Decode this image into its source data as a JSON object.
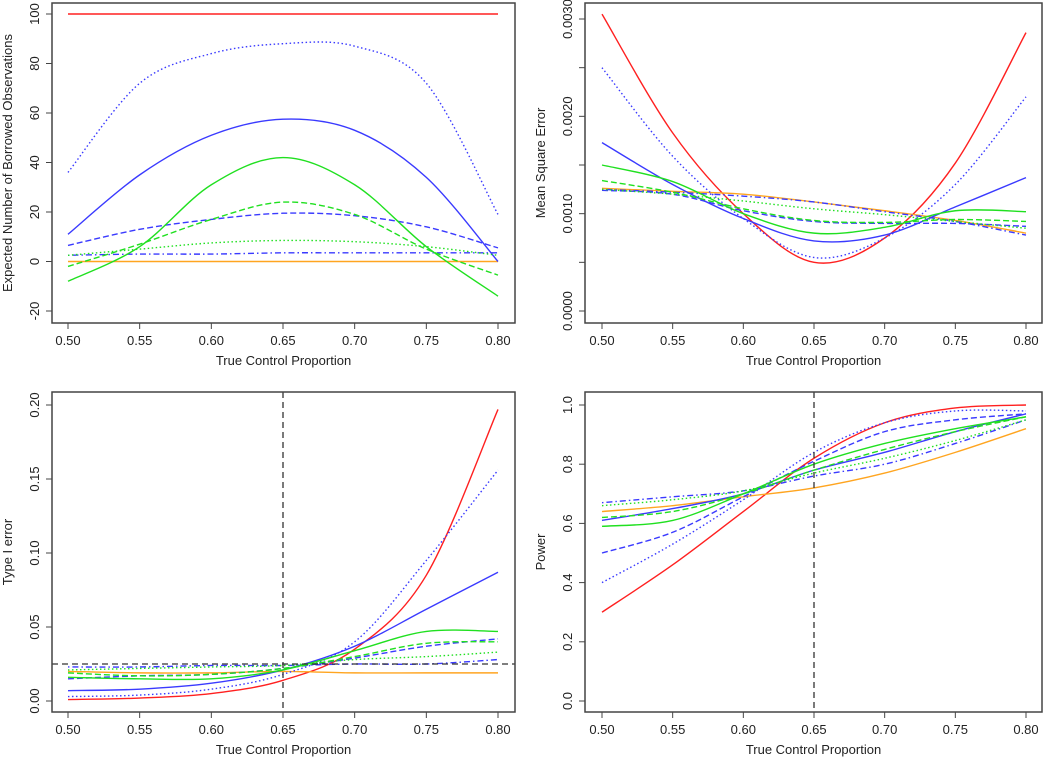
{
  "series_styles": [
    {
      "name": "red-solid",
      "color": "#ff2020",
      "style": "solid"
    },
    {
      "name": "orange-solid",
      "color": "#ffa520",
      "style": "solid"
    },
    {
      "name": "blue-solid",
      "color": "#3a3aff",
      "style": "solid"
    },
    {
      "name": "blue-dotted",
      "color": "#3a3aff",
      "style": "dotted"
    },
    {
      "name": "blue-dashed",
      "color": "#3a3aff",
      "style": "dashed"
    },
    {
      "name": "blue-dotdash",
      "color": "#3a3aff",
      "style": "dotdash"
    },
    {
      "name": "green-solid",
      "color": "#20e020",
      "style": "solid"
    },
    {
      "name": "green-dashed",
      "color": "#20e020",
      "style": "dashed"
    },
    {
      "name": "green-dotted",
      "color": "#20e020",
      "style": "dotted"
    }
  ],
  "chart_data": [
    {
      "type": "line",
      "title": "",
      "xlabel": "True Control Proportion",
      "ylabel": "Expected Number of Borrowed Observations",
      "x": [
        0.5,
        0.55,
        0.6,
        0.65,
        0.7,
        0.75,
        0.8
      ],
      "xlim": [
        0.5,
        0.8
      ],
      "xticks": [
        "0.50",
        "0.55",
        "0.60",
        "0.65",
        "0.70",
        "0.75",
        "0.80"
      ],
      "ylim": [
        -20,
        100
      ],
      "yticks": [
        -20,
        0,
        20,
        40,
        60,
        80,
        100
      ],
      "ytick_labels": [
        "-20",
        "0",
        "20",
        "40",
        "60",
        "80",
        "100"
      ],
      "reference_lines": [],
      "series": [
        {
          "name": "red-solid",
          "values": [
            100,
            100,
            100,
            100,
            100,
            100,
            100
          ]
        },
        {
          "name": "orange-solid",
          "values": [
            0,
            0,
            0,
            0,
            0,
            0,
            0
          ]
        },
        {
          "name": "blue-solid",
          "values": [
            11,
            35,
            51,
            57.5,
            53,
            34,
            0
          ]
        },
        {
          "name": "blue-dotted",
          "values": [
            36,
            72,
            84,
            88,
            87,
            72,
            19
          ]
        },
        {
          "name": "blue-dashed",
          "values": [
            6.5,
            13,
            17,
            19.5,
            18.5,
            14,
            5.5
          ]
        },
        {
          "name": "blue-dotdash",
          "values": [
            2.5,
            3,
            3,
            3.5,
            3.5,
            3.5,
            3.5
          ]
        },
        {
          "name": "green-solid",
          "values": [
            -8,
            6,
            31,
            42,
            31,
            6,
            -14
          ]
        },
        {
          "name": "green-dashed",
          "values": [
            -2,
            7,
            17,
            24,
            19,
            5,
            -5.5
          ]
        },
        {
          "name": "green-dotted",
          "values": [
            2.5,
            5,
            7.5,
            8.5,
            8,
            6,
            2.5
          ]
        }
      ]
    },
    {
      "type": "line",
      "title": "",
      "xlabel": "True Control Proportion",
      "ylabel": "Mean Square Error",
      "x": [
        0.5,
        0.55,
        0.6,
        0.65,
        0.7,
        0.75,
        0.8
      ],
      "xlim": [
        0.5,
        0.8
      ],
      "xticks": [
        "0.50",
        "0.55",
        "0.60",
        "0.65",
        "0.70",
        "0.75",
        "0.80"
      ],
      "ylim": [
        0,
        0.003
      ],
      "yticks": [
        0,
        0.0005,
        0.001,
        0.0015,
        0.002,
        0.0025,
        0.003
      ],
      "ytick_labels": [
        "0.0000",
        "",
        "0.0010",
        "",
        "0.0020",
        "",
        "0.0030"
      ],
      "reference_lines": [],
      "series": [
        {
          "name": "red-solid",
          "values": [
            0.00305,
            0.00183,
            0.001,
            0.0005,
            0.00075,
            0.00152,
            0.00286
          ]
        },
        {
          "name": "orange-solid",
          "values": [
            0.00126,
            0.00123,
            0.0012,
            0.00112,
            0.00103,
            0.00093,
            0.0008
          ]
        },
        {
          "name": "blue-solid",
          "values": [
            0.00173,
            0.0013,
            0.00095,
            0.00072,
            0.00078,
            0.00107,
            0.00137
          ]
        },
        {
          "name": "blue-dotted",
          "values": [
            0.0025,
            0.00159,
            0.00095,
            0.00055,
            0.00075,
            0.0013,
            0.0022
          ]
        },
        {
          "name": "blue-dashed",
          "values": [
            0.00124,
            0.0012,
            0.00103,
            0.00092,
            0.0009,
            0.0009,
            0.00087
          ]
        },
        {
          "name": "blue-dotdash",
          "values": [
            0.00125,
            0.00122,
            0.00118,
            0.00112,
            0.00102,
            0.00092,
            0.00078
          ]
        },
        {
          "name": "green-solid",
          "values": [
            0.0015,
            0.00133,
            0.001,
            0.0008,
            0.00086,
            0.00103,
            0.00102
          ]
        },
        {
          "name": "green-dashed",
          "values": [
            0.00134,
            0.00122,
            0.00105,
            0.00093,
            0.00091,
            0.00094,
            0.00092
          ]
        },
        {
          "name": "green-dotted",
          "values": [
            0.00125,
            0.0012,
            0.00113,
            0.00105,
            0.00099,
            0.00092,
            0.00085
          ]
        }
      ]
    },
    {
      "type": "line",
      "title": "",
      "xlabel": "True Control Proportion",
      "ylabel": "Type I error",
      "x": [
        0.5,
        0.55,
        0.6,
        0.65,
        0.7,
        0.75,
        0.8
      ],
      "xlim": [
        0.5,
        0.8
      ],
      "xticks": [
        "0.50",
        "0.55",
        "0.60",
        "0.65",
        "0.70",
        "0.75",
        "0.80"
      ],
      "ylim": [
        0,
        0.2
      ],
      "yticks": [
        0,
        0.05,
        0.1,
        0.15,
        0.2
      ],
      "ytick_labels": [
        "0.00",
        "0.05",
        "0.10",
        "0.15",
        "0.20"
      ],
      "reference_lines": [
        {
          "axis": "y",
          "value": 0.025
        },
        {
          "axis": "x",
          "value": 0.65
        }
      ],
      "series": [
        {
          "name": "red-solid",
          "values": [
            0.001,
            0.002,
            0.005,
            0.014,
            0.035,
            0.085,
            0.197
          ]
        },
        {
          "name": "orange-solid",
          "values": [
            0.02,
            0.019,
            0.019,
            0.02,
            0.019,
            0.019,
            0.019
          ]
        },
        {
          "name": "blue-solid",
          "values": [
            0.007,
            0.008,
            0.012,
            0.021,
            0.037,
            0.062,
            0.087
          ]
        },
        {
          "name": "blue-dotted",
          "values": [
            0.003,
            0.004,
            0.008,
            0.018,
            0.04,
            0.095,
            0.156
          ]
        },
        {
          "name": "blue-dashed",
          "values": [
            0.015,
            0.017,
            0.018,
            0.022,
            0.029,
            0.037,
            0.042
          ]
        },
        {
          "name": "blue-dotdash",
          "values": [
            0.023,
            0.023,
            0.024,
            0.024,
            0.025,
            0.025,
            0.028
          ]
        },
        {
          "name": "green-solid",
          "values": [
            0.016,
            0.015,
            0.015,
            0.021,
            0.034,
            0.047,
            0.047
          ]
        },
        {
          "name": "green-dashed",
          "values": [
            0.019,
            0.017,
            0.018,
            0.022,
            0.03,
            0.039,
            0.04
          ]
        },
        {
          "name": "green-dotted",
          "values": [
            0.021,
            0.022,
            0.023,
            0.024,
            0.028,
            0.03,
            0.033
          ]
        }
      ]
    },
    {
      "type": "line",
      "title": "",
      "xlabel": "True Control Proportion",
      "ylabel": "Power",
      "x": [
        0.5,
        0.55,
        0.6,
        0.65,
        0.7,
        0.75,
        0.8
      ],
      "xlim": [
        0.5,
        0.8
      ],
      "xticks": [
        "0.50",
        "0.55",
        "0.60",
        "0.65",
        "0.70",
        "0.75",
        "0.80"
      ],
      "ylim": [
        0,
        1.0
      ],
      "yticks": [
        0,
        0.2,
        0.4,
        0.6,
        0.8,
        1.0
      ],
      "ytick_labels": [
        "0.0",
        "0.2",
        "0.4",
        "0.6",
        "0.8",
        "1.0"
      ],
      "reference_lines": [
        {
          "axis": "x",
          "value": 0.65
        }
      ],
      "series": [
        {
          "name": "red-solid",
          "values": [
            0.3,
            0.46,
            0.64,
            0.82,
            0.94,
            0.99,
            1.0
          ]
        },
        {
          "name": "orange-solid",
          "values": [
            0.64,
            0.66,
            0.69,
            0.72,
            0.77,
            0.84,
            0.92
          ]
        },
        {
          "name": "blue-solid",
          "values": [
            0.61,
            0.65,
            0.7,
            0.78,
            0.84,
            0.91,
            0.97
          ]
        },
        {
          "name": "blue-dotted",
          "values": [
            0.4,
            0.53,
            0.68,
            0.84,
            0.94,
            0.98,
            0.98
          ]
        },
        {
          "name": "blue-dashed",
          "values": [
            0.5,
            0.57,
            0.69,
            0.81,
            0.91,
            0.95,
            0.97
          ]
        },
        {
          "name": "blue-dotdash",
          "values": [
            0.67,
            0.69,
            0.71,
            0.76,
            0.8,
            0.87,
            0.95
          ]
        },
        {
          "name": "green-solid",
          "values": [
            0.59,
            0.61,
            0.7,
            0.8,
            0.87,
            0.92,
            0.96
          ]
        },
        {
          "name": "green-dashed",
          "values": [
            0.62,
            0.64,
            0.7,
            0.78,
            0.85,
            0.91,
            0.96
          ]
        },
        {
          "name": "green-dotted",
          "values": [
            0.66,
            0.68,
            0.71,
            0.77,
            0.82,
            0.88,
            0.95
          ]
        }
      ]
    }
  ]
}
